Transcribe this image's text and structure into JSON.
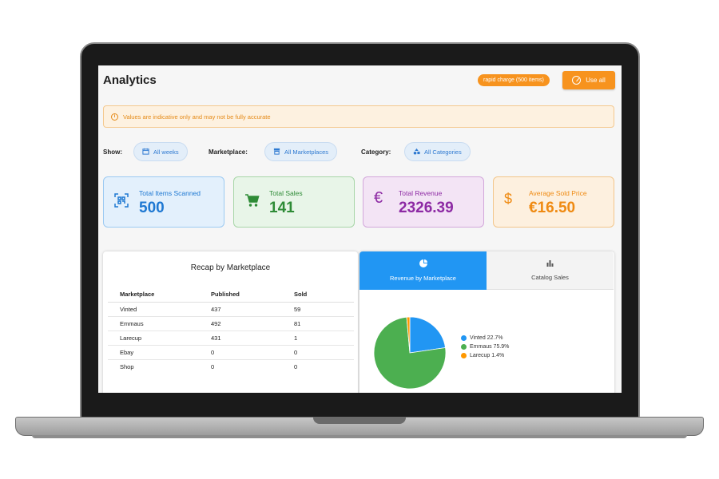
{
  "header": {
    "title": "Analytics",
    "rapid_badge": "rapid charge (500 items)",
    "use_all_label": "Use all"
  },
  "warning": {
    "text": "Values are indicative only and may not be fully accurate"
  },
  "filters": {
    "show_label": "Show:",
    "show_value": "All weeks",
    "marketplace_label": "Marketplace:",
    "marketplace_value": "All Marketplaces",
    "category_label": "Category:",
    "category_value": "All Categories"
  },
  "stats": [
    {
      "label": "Total Items Scanned",
      "value": "500",
      "icon": "qr-scan-icon",
      "color": "#1e78d2"
    },
    {
      "label": "Total Sales",
      "value": "141",
      "icon": "cart-icon",
      "color": "#2e8b36"
    },
    {
      "label": "Total Revenue",
      "value": "2326.39",
      "icon": "euro-icon",
      "color": "#8d2aa4"
    },
    {
      "label": "Average Sold Price",
      "value": "€16.50",
      "icon": "dollar-icon",
      "color": "#ef8a12"
    }
  ],
  "recap": {
    "title": "Recap by Marketplace",
    "columns": [
      "Marketplace",
      "Published",
      "Sold"
    ],
    "rows": [
      [
        "Vinted",
        "437",
        "59"
      ],
      [
        "Emmaus",
        "492",
        "81"
      ],
      [
        "Larecup",
        "431",
        "1"
      ],
      [
        "Ebay",
        "0",
        "0"
      ],
      [
        "Shop",
        "0",
        "0"
      ]
    ]
  },
  "charts": {
    "tabs": [
      {
        "label": "Revenue by Marketplace",
        "icon": "pie-chart-icon",
        "active": true
      },
      {
        "label": "Catalog Sales",
        "icon": "bar-chart-icon",
        "active": false
      }
    ]
  },
  "chart_data": {
    "type": "pie",
    "slices": [
      {
        "label": "Vinted 22.7%",
        "value": 22.7,
        "color": "#2196f3"
      },
      {
        "label": "Emmaus 75.9%",
        "value": 75.9,
        "color": "#4caf50"
      },
      {
        "label": "Larecup 1.4%",
        "value": 1.4,
        "color": "#ff9800"
      }
    ]
  }
}
